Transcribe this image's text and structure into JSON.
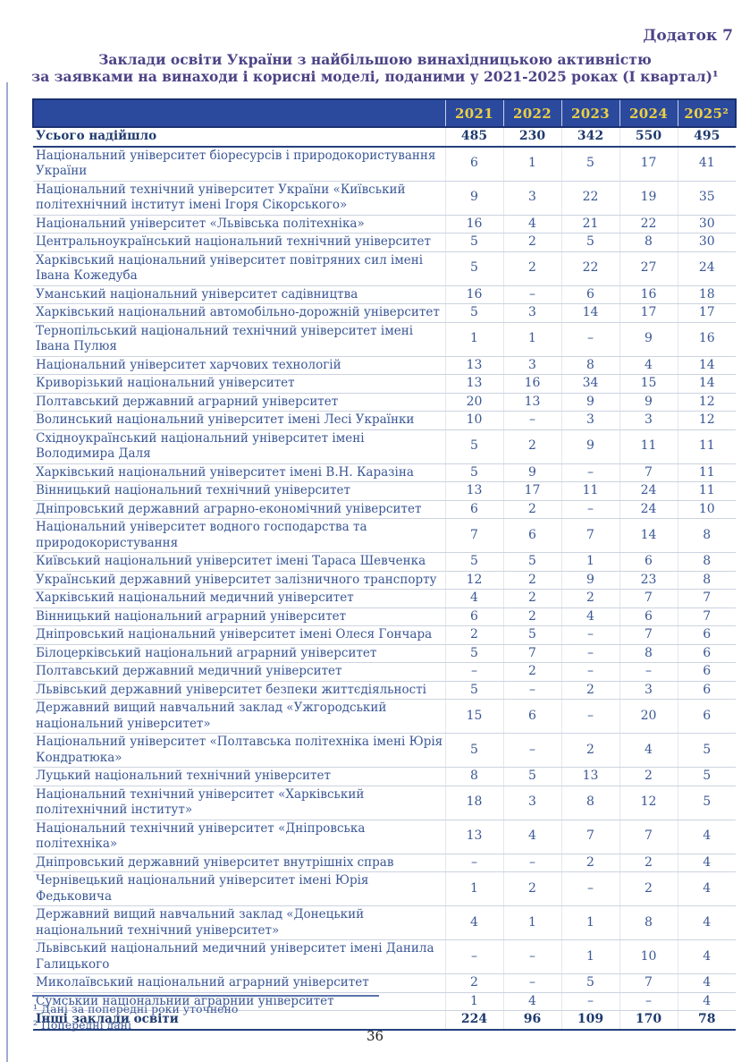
{
  "page": {
    "appendix_label": "Додаток 7",
    "title_line1": "Заклади освіти України з найбільшою винахідницькою активністю",
    "title_line2": "за заявками на винаходи і корисні моделі, поданими у 2021-2025 роках (І квартал)¹",
    "page_number": "36"
  },
  "colors": {
    "heading_text": "#4c4386",
    "header_bar_bg": "#2b4a9e",
    "header_bar_text": "#edd043",
    "body_text": "#3a5795",
    "bold_row_text": "#1e3a6e"
  },
  "table": {
    "year_columns": [
      "2021",
      "2022",
      "2023",
      "2024",
      "2025²"
    ],
    "rows": [
      {
        "name": "Усього надійшло",
        "values": [
          "485",
          "230",
          "342",
          "550",
          "495"
        ],
        "bold": true
      },
      {
        "name": "Національний університет біоресурсів і природокористування України",
        "values": [
          "6",
          "1",
          "5",
          "17",
          "41"
        ],
        "bold": false
      },
      {
        "name": "Національний технічний університет України «Київський політехнічний інститут імені Ігоря Сікорського»",
        "values": [
          "9",
          "3",
          "22",
          "19",
          "35"
        ],
        "bold": false
      },
      {
        "name": "Національний університет «Львівська політехніка»",
        "values": [
          "16",
          "4",
          "21",
          "22",
          "30"
        ],
        "bold": false
      },
      {
        "name": "Центральноукраїнський національний технічний університет",
        "values": [
          "5",
          "2",
          "5",
          "8",
          "30"
        ],
        "bold": false
      },
      {
        "name": "Харківський національний університет повітряних сил імені Івана Кожедуба",
        "values": [
          "5",
          "2",
          "22",
          "27",
          "24"
        ],
        "bold": false
      },
      {
        "name": "Уманський національний університет садівництва",
        "values": [
          "16",
          "–",
          "6",
          "16",
          "18"
        ],
        "bold": false
      },
      {
        "name": "Харківський національний автомобільно-дорожній університет",
        "values": [
          "5",
          "3",
          "14",
          "17",
          "17"
        ],
        "bold": false
      },
      {
        "name": "Тернопільський національний технічний університет імені Івана Пулюя",
        "values": [
          "1",
          "1",
          "–",
          "9",
          "16"
        ],
        "bold": false
      },
      {
        "name": "Національний університет харчових технологій",
        "values": [
          "13",
          "3",
          "8",
          "4",
          "14"
        ],
        "bold": false
      },
      {
        "name": "Криворізький національний університет",
        "values": [
          "13",
          "16",
          "34",
          "15",
          "14"
        ],
        "bold": false
      },
      {
        "name": "Полтавський державний аграрний університет",
        "values": [
          "20",
          "13",
          "9",
          "9",
          "12"
        ],
        "bold": false
      },
      {
        "name": "Волинський національний університет імені Лесі Українки",
        "values": [
          "10",
          "–",
          "3",
          "3",
          "12"
        ],
        "bold": false
      },
      {
        "name": "Східноукраїнський національний університет імені Володимира Даля",
        "values": [
          "5",
          "2",
          "9",
          "11",
          "11"
        ],
        "bold": false
      },
      {
        "name": "Харківський національний університет імені В.Н. Каразіна",
        "values": [
          "5",
          "9",
          "–",
          "7",
          "11"
        ],
        "bold": false
      },
      {
        "name": "Вінницький національний технічний університет",
        "values": [
          "13",
          "17",
          "11",
          "24",
          "11"
        ],
        "bold": false
      },
      {
        "name": "Дніпровський державний аграрно-економічний університет",
        "values": [
          "6",
          "2",
          "–",
          "24",
          "10"
        ],
        "bold": false
      },
      {
        "name": "Національний університет водного господарства та природокористування",
        "values": [
          "7",
          "6",
          "7",
          "14",
          "8"
        ],
        "bold": false
      },
      {
        "name": "Київський національний університет імені Тараса Шевченка",
        "values": [
          "5",
          "5",
          "1",
          "6",
          "8"
        ],
        "bold": false
      },
      {
        "name": "Український державний університет залізничного транспорту",
        "values": [
          "12",
          "2",
          "9",
          "23",
          "8"
        ],
        "bold": false
      },
      {
        "name": "Харківський національний медичний університет",
        "values": [
          "4",
          "2",
          "2",
          "7",
          "7"
        ],
        "bold": false
      },
      {
        "name": "Вінницький національний аграрний університет",
        "values": [
          "6",
          "2",
          "4",
          "6",
          "7"
        ],
        "bold": false
      },
      {
        "name": "Дніпровський національний університет імені Олеся Гончара",
        "values": [
          "2",
          "5",
          "–",
          "7",
          "6"
        ],
        "bold": false
      },
      {
        "name": "Білоцерківський національний аграрний університет",
        "values": [
          "5",
          "7",
          "–",
          "8",
          "6"
        ],
        "bold": false
      },
      {
        "name": "Полтавський державний медичний університет",
        "values": [
          "–",
          "2",
          "–",
          "–",
          "6"
        ],
        "bold": false
      },
      {
        "name": "Львівський державний університет безпеки життєдіяльності",
        "values": [
          "5",
          "–",
          "2",
          "3",
          "6"
        ],
        "bold": false
      },
      {
        "name": "Державний вищий навчальний заклад «Ужгородський національний університет»",
        "values": [
          "15",
          "6",
          "–",
          "20",
          "6"
        ],
        "bold": false
      },
      {
        "name": "Національний університет «Полтавська політехніка імені Юрія Кондратюка»",
        "values": [
          "5",
          "–",
          "2",
          "4",
          "5"
        ],
        "bold": false
      },
      {
        "name": "Луцький національний технічний університет",
        "values": [
          "8",
          "5",
          "13",
          "2",
          "5"
        ],
        "bold": false
      },
      {
        "name": "Національний технічний університет «Харківський політехнічний інститут»",
        "values": [
          "18",
          "3",
          "8",
          "12",
          "5"
        ],
        "bold": false
      },
      {
        "name": "Національний технічний університет «Дніпровська політехніка»",
        "values": [
          "13",
          "4",
          "7",
          "7",
          "4"
        ],
        "bold": false
      },
      {
        "name": "Дніпровський державний університет внутрішніх справ",
        "values": [
          "–",
          "–",
          "2",
          "2",
          "4"
        ],
        "bold": false
      },
      {
        "name": "Чернівецький національний університет імені Юрія Федьковича",
        "values": [
          "1",
          "2",
          "–",
          "2",
          "4"
        ],
        "bold": false
      },
      {
        "name": "Державний вищий навчальний заклад «Донецький національний технічний університет»",
        "values": [
          "4",
          "1",
          "1",
          "8",
          "4"
        ],
        "bold": false
      },
      {
        "name": "Львівський національний медичний університет імені Данила Галицького",
        "values": [
          "–",
          "–",
          "1",
          "10",
          "4"
        ],
        "bold": false
      },
      {
        "name": "Миколаївський національний аграрний університет",
        "values": [
          "2",
          "–",
          "5",
          "7",
          "4"
        ],
        "bold": false
      },
      {
        "name": "Сумський національний аграрний університет",
        "values": [
          "1",
          "4",
          "–",
          "–",
          "4"
        ],
        "bold": false
      },
      {
        "name": "Інші заклади освіти",
        "values": [
          "224",
          "96",
          "109",
          "170",
          "78"
        ],
        "bold": true
      }
    ]
  },
  "footnotes": [
    "¹ Дані за попередні роки уточнено",
    "² Попередні дані"
  ]
}
